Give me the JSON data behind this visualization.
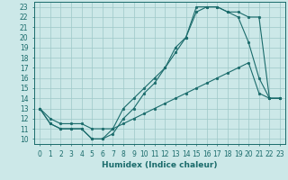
{
  "xlabel": "Humidex (Indice chaleur)",
  "xlim": [
    -0.5,
    23.5
  ],
  "ylim": [
    9.5,
    23.5
  ],
  "xticks": [
    0,
    1,
    2,
    3,
    4,
    5,
    6,
    7,
    8,
    9,
    10,
    11,
    12,
    13,
    14,
    15,
    16,
    17,
    18,
    19,
    20,
    21,
    22,
    23
  ],
  "yticks": [
    10,
    11,
    12,
    13,
    14,
    15,
    16,
    17,
    18,
    19,
    20,
    21,
    22,
    23
  ],
  "bg_color": "#cce8e8",
  "grid_color": "#9dc8c8",
  "line_color": "#1a6b6b",
  "line1_x": [
    0,
    1,
    2,
    3,
    4,
    5,
    6,
    7,
    8,
    9,
    10,
    11,
    12,
    13,
    14,
    15,
    16,
    17,
    18,
    19,
    20,
    21,
    22,
    23
  ],
  "line1_y": [
    13,
    11.5,
    11,
    11,
    11,
    10,
    10,
    11,
    13,
    14,
    15,
    16,
    17,
    19,
    20,
    23,
    23,
    23,
    22.5,
    22,
    19.5,
    16,
    14,
    14
  ],
  "line2_x": [
    0,
    1,
    2,
    3,
    4,
    5,
    6,
    7,
    8,
    9,
    10,
    11,
    12,
    13,
    14,
    15,
    16,
    17,
    18,
    19,
    20,
    21,
    22,
    23
  ],
  "line2_y": [
    13,
    11.5,
    11,
    11,
    11,
    10,
    10,
    10.5,
    12,
    13,
    14.5,
    15.5,
    17,
    18.5,
    20,
    22.5,
    23,
    23,
    22.5,
    22.5,
    22,
    22,
    14,
    14
  ],
  "line3_x": [
    0,
    1,
    2,
    3,
    4,
    5,
    6,
    7,
    8,
    9,
    10,
    11,
    12,
    13,
    14,
    15,
    16,
    17,
    18,
    19,
    20,
    21,
    22,
    23
  ],
  "line3_y": [
    13,
    12,
    11.5,
    11.5,
    11.5,
    11,
    11,
    11,
    11.5,
    12,
    12.5,
    13,
    13.5,
    14,
    14.5,
    15,
    15.5,
    16,
    16.5,
    17,
    17.5,
    14.5,
    14,
    14
  ],
  "font_size_tick": 5.5,
  "font_size_label": 6.5
}
